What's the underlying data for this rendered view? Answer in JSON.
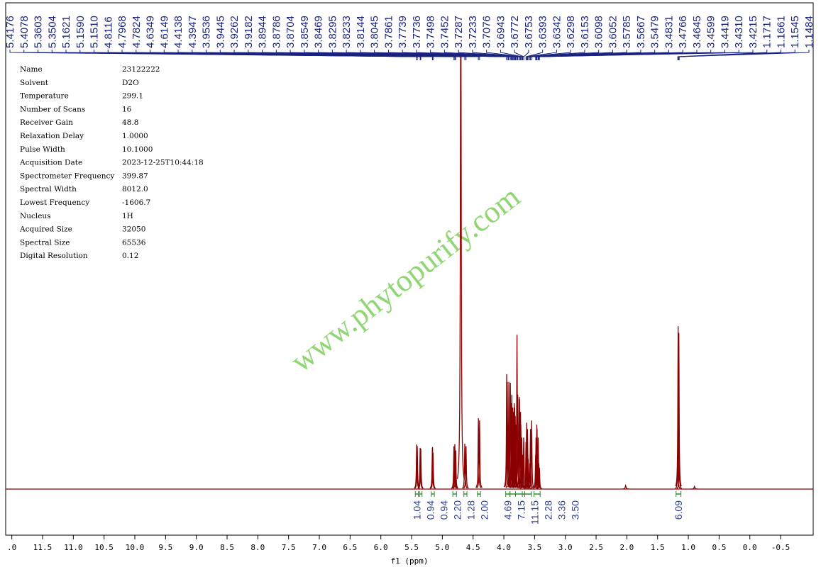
{
  "chart_data": {
    "type": "nmr",
    "xlabel": "f1 (ppm)",
    "xlim": [
      12.1,
      -1.03
    ],
    "ylim": [
      0,
      100
    ],
    "xticks": [
      {
        "value": 12.0,
        "label": ".0"
      },
      {
        "value": 11.5,
        "label": "11.5"
      },
      {
        "value": 11.0,
        "label": "11.0"
      },
      {
        "value": 10.5,
        "label": "10.5"
      },
      {
        "value": 10.0,
        "label": "10.0"
      },
      9.5,
      {
        "value": 9.0,
        "label": "9.0"
      },
      8.5,
      {
        "value": 8.0,
        "label": "8.0"
      },
      7.5,
      {
        "value": 7.0,
        "label": "7.0"
      },
      6.5,
      {
        "value": 6.0,
        "label": "6.0"
      },
      5.5,
      {
        "value": 5.0,
        "label": "5.0"
      },
      4.5,
      {
        "value": 4.0,
        "label": "4.0"
      },
      3.5,
      {
        "value": 3.0,
        "label": "3.0"
      },
      2.5,
      {
        "value": 2.0,
        "label": "2.0"
      },
      1.5,
      {
        "value": 1.0,
        "label": "1.0"
      },
      0.5,
      {
        "value": 0.0,
        "label": "0.0"
      },
      -0.5
    ],
    "color": "#8b0000",
    "label_color": "#1a237e",
    "x": [
      5.4176,
      5.4078,
      5.3603,
      5.3504,
      5.1621,
      5.159,
      5.151,
      4.8116,
      4.7968,
      4.7824,
      4.6349,
      4.6149,
      4.4138,
      4.3947,
      3.9536,
      3.9445,
      3.9262,
      3.9182,
      3.8944,
      3.8786,
      3.8704,
      3.8549,
      3.8469,
      3.8295,
      3.8233,
      3.8144,
      3.8045,
      3.7861,
      3.7739,
      3.7736,
      3.7498,
      3.7452,
      3.7287,
      3.7233,
      3.7076,
      3.6943,
      3.6772,
      3.6753,
      3.6393,
      3.6342,
      3.6298,
      3.6153,
      3.6098,
      3.6052,
      3.5785,
      3.5667,
      3.5479,
      3.4831,
      3.4766,
      3.4645,
      3.4599,
      3.4419,
      3.431,
      3.4215,
      1.1717,
      1.1661,
      1.1545,
      1.1484
    ],
    "x_labels": [
      "5.4176",
      "5.4078",
      "5.3603",
      "5.3504",
      "5.1621",
      "5.1590",
      "5.1510",
      "4.8116",
      "4.7968",
      "4.7824",
      "4.6349",
      "4.6149",
      "4.4138",
      "4.3947",
      "3.9536",
      "3.9445",
      "3.9262",
      "3.9182",
      "3.8944",
      "3.8786",
      "3.8704",
      "3.8549",
      "3.8469",
      "3.8295",
      "3.8233",
      "3.8144",
      "3.8045",
      "3.7861",
      "3.7739",
      "3.7736",
      "3.7498",
      "3.7452",
      "3.7287",
      "3.7233",
      "3.7076",
      "3.6943",
      "3.6772",
      "3.6753",
      "3.6393",
      "3.6342",
      "3.6298",
      "3.6153",
      "3.6098",
      "3.6052",
      "3.5785",
      "3.5667",
      "3.5479",
      "3.4831",
      "3.4766",
      "3.4645",
      "3.4599",
      "3.4419",
      "3.4310",
      "3.4215",
      "1.1717",
      "1.1661",
      "1.1545",
      "1.1484"
    ],
    "values": [
      10.4,
      10,
      9.6,
      9.4,
      9.6,
      9.8,
      8.5,
      10,
      10.5,
      9,
      10.6,
      10,
      16.5,
      16,
      26.8,
      25,
      15,
      25,
      24.8,
      20,
      22,
      19,
      18,
      20,
      19,
      17,
      15,
      36,
      22,
      21,
      21.5,
      21,
      18,
      15,
      12,
      8,
      12,
      11,
      11,
      10,
      15.5,
      14,
      8,
      7,
      6,
      14,
      16,
      8,
      12,
      15,
      14,
      12,
      6,
      5,
      8,
      38,
      36.4,
      7
    ],
    "unlabeled_peaks": {
      "x": [
        4.7,
        2.02,
        0.9
      ],
      "values": [
        130,
        0.8,
        0.6
      ]
    },
    "integrals": [
      {
        "range": [
          5.44,
          5.39
        ],
        "value": 1.04
      },
      {
        "range": [
          5.37,
          5.33
        ],
        "value": 0.94
      },
      {
        "range": [
          5.18,
          5.13
        ],
        "value": 0.94
      },
      {
        "range": [
          4.83,
          4.77
        ],
        "value": 2.2,
        "label": "2.20"
      },
      {
        "range": [
          4.65,
          4.6
        ],
        "value": 1.28
      },
      {
        "range": [
          4.43,
          4.38
        ],
        "value": 2.0,
        "label": "2.00"
      },
      {
        "range": [
          3.97,
          3.9
        ],
        "value": 4.69
      },
      {
        "range": [
          3.9,
          3.81
        ],
        "value": 7.15
      },
      {
        "range": [
          3.81,
          3.7
        ],
        "value": 11.15
      },
      {
        "range": [
          3.7,
          3.66
        ],
        "value": 2.28
      },
      {
        "range": [
          3.66,
          3.55
        ],
        "value": 3.36
      },
      {
        "range": [
          3.51,
          3.41
        ],
        "value": 3.5,
        "label": "3.50"
      },
      {
        "range": [
          1.2,
          1.12
        ],
        "value": 6.09
      }
    ],
    "watermark": "www.phytopurify.com",
    "parameters": [
      {
        "label": "Name",
        "value": "23122222"
      },
      {
        "label": "Solvent",
        "value": "D2O"
      },
      {
        "label": "Temperature",
        "value": "299.1"
      },
      {
        "label": "Number of Scans",
        "value": "16"
      },
      {
        "label": "Receiver Gain",
        "value": "48.8"
      },
      {
        "label": "Relaxation Delay",
        "value": "1.0000"
      },
      {
        "label": "Pulse Width",
        "value": "10.1000"
      },
      {
        "label": "Acquisition Date",
        "value": "2023-12-25T10:44:18"
      },
      {
        "label": "Spectrometer Frequency",
        "value": "399.87"
      },
      {
        "label": "Spectral Width",
        "value": "8012.0"
      },
      {
        "label": "Lowest Frequency",
        "value": "-1606.7"
      },
      {
        "label": "Nucleus",
        "value": "1H"
      },
      {
        "label": "Acquired Size",
        "value": "32050"
      },
      {
        "label": "Spectral Size",
        "value": "65536"
      },
      {
        "label": "Digital Resolution",
        "value": "0.12"
      }
    ]
  }
}
